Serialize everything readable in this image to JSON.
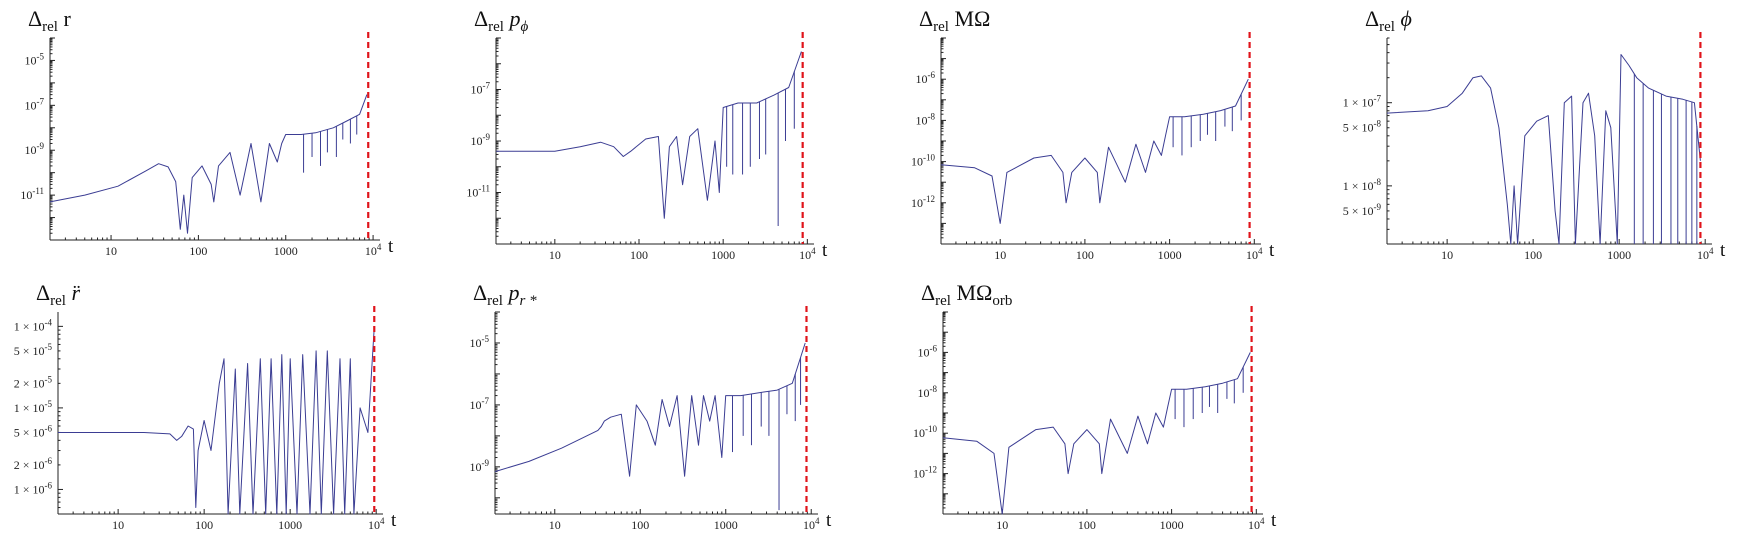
{
  "chart_data": [
    {
      "type": "line",
      "title": {
        "base": "Δ",
        "sub": "rel",
        "symbol": "r",
        "italic": false
      },
      "xlabel": "t",
      "xscale": "log",
      "yscale": "log",
      "xlim": [
        2,
        12000
      ],
      "ylim": [
        1e-13,
        0.0001
      ],
      "xticks": [
        10,
        100,
        1000,
        10000
      ],
      "xtick_labels": [
        "10",
        "100",
        "1000",
        "10^4"
      ],
      "yticks": [
        1e-11,
        1e-09,
        1e-07,
        1e-05
      ],
      "ytick_labels": [
        "10^-11",
        "10^-9",
        "10^-7",
        "10^-5"
      ],
      "series_color": "#3b3d93",
      "vline": {
        "x": 8800,
        "color": "#e0141b",
        "style": "dashed"
      },
      "curve": [
        [
          2,
          5e-12
        ],
        [
          5,
          1e-11
        ],
        [
          12,
          2.5e-11
        ],
        [
          25,
          1.2e-10
        ],
        [
          35,
          2.5e-10
        ],
        [
          45,
          1.8e-10
        ],
        [
          55,
          4e-11
        ],
        [
          62,
          3e-13
        ],
        [
          68,
          1e-11
        ],
        [
          75,
          2e-13
        ],
        [
          85,
          6e-11
        ],
        [
          110,
          2e-10
        ],
        [
          140,
          3e-11
        ],
        [
          150,
          5e-12
        ],
        [
          170,
          2e-10
        ],
        [
          230,
          8e-10
        ],
        [
          300,
          1e-11
        ],
        [
          400,
          2e-09
        ],
        [
          520,
          5e-12
        ],
        [
          650,
          2e-09
        ],
        [
          800,
          3e-10
        ],
        [
          900,
          2e-09
        ],
        [
          1000,
          5e-09
        ],
        [
          1500,
          5e-09
        ],
        [
          2200,
          6e-09
        ],
        [
          3500,
          1e-08
        ],
        [
          5000,
          2e-08
        ],
        [
          7000,
          4e-08
        ],
        [
          8500,
          3e-07
        ]
      ],
      "spikes": [
        [
          1600,
          1e-10
        ],
        [
          2000,
          5e-10
        ],
        [
          2500,
          2e-10
        ],
        [
          3000,
          8e-10
        ],
        [
          3800,
          5e-10
        ],
        [
          4500,
          3e-09
        ],
        [
          5500,
          2e-09
        ],
        [
          6500,
          5e-09
        ]
      ]
    },
    {
      "type": "line",
      "title": {
        "base": "Δ",
        "sub": "rel",
        "symbol": "p",
        "symsub": "ϕ",
        "italic": true
      },
      "xlabel": "t",
      "xscale": "log",
      "yscale": "log",
      "xlim": [
        2,
        12000
      ],
      "ylim": [
        1e-13,
        1e-05
      ],
      "xticks": [
        10,
        100,
        1000,
        10000
      ],
      "xtick_labels": [
        "10",
        "100",
        "1000",
        "10^4"
      ],
      "yticks": [
        1e-11,
        1e-09,
        1e-07
      ],
      "ytick_labels": [
        "10^-11",
        "10^-9",
        "10^-7"
      ],
      "series_color": "#3b3d93",
      "vline": {
        "x": 8800,
        "color": "#e0141b",
        "style": "dashed"
      },
      "curve": [
        [
          2,
          4e-10
        ],
        [
          10,
          4e-10
        ],
        [
          20,
          6e-10
        ],
        [
          35,
          9e-10
        ],
        [
          50,
          6e-10
        ],
        [
          65,
          2.5e-10
        ],
        [
          80,
          4e-10
        ],
        [
          120,
          1.2e-09
        ],
        [
          170,
          1.5e-09
        ],
        [
          200,
          1e-12
        ],
        [
          230,
          6e-10
        ],
        [
          280,
          1.5e-09
        ],
        [
          330,
          2e-11
        ],
        [
          400,
          1.5e-09
        ],
        [
          500,
          3e-09
        ],
        [
          650,
          5e-12
        ],
        [
          800,
          1e-09
        ],
        [
          900,
          1e-11
        ],
        [
          1000,
          2e-08
        ],
        [
          1500,
          3e-08
        ],
        [
          2500,
          3e-08
        ],
        [
          4000,
          6e-08
        ],
        [
          6000,
          1.2e-07
        ],
        [
          8500,
          3e-06
        ]
      ],
      "spikes": [
        [
          1100,
          1e-10
        ],
        [
          1300,
          5e-11
        ],
        [
          1700,
          5e-11
        ],
        [
          2100,
          1e-10
        ],
        [
          2700,
          2e-10
        ],
        [
          3200,
          3e-10
        ],
        [
          4500,
          5e-13
        ],
        [
          5500,
          1e-09
        ],
        [
          7000,
          3e-09
        ]
      ]
    },
    {
      "type": "line",
      "title": {
        "base": "Δ",
        "sub": "rel",
        "symbol": "MΩ",
        "italic": false
      },
      "xlabel": "t",
      "xscale": "log",
      "yscale": "log",
      "xlim": [
        2,
        12000
      ],
      "ylim": [
        1e-14,
        0.0001
      ],
      "xticks": [
        10,
        100,
        1000,
        10000
      ],
      "xtick_labels": [
        "10",
        "100",
        "1000",
        "10^4"
      ],
      "yticks": [
        1e-12,
        1e-10,
        1e-08,
        1e-06
      ],
      "ytick_labels": [
        "10^-12",
        "10^-10",
        "10^-8",
        "10^-6"
      ],
      "series_color": "#3b3d93",
      "vline": {
        "x": 8800,
        "color": "#e0141b",
        "style": "dashed"
      },
      "curve": [
        [
          2,
          7e-11
        ],
        [
          5,
          5e-11
        ],
        [
          8,
          2e-11
        ],
        [
          10,
          1e-13
        ],
        [
          12,
          3e-11
        ],
        [
          25,
          1.5e-10
        ],
        [
          40,
          2e-10
        ],
        [
          55,
          3e-11
        ],
        [
          60,
          1e-12
        ],
        [
          70,
          3e-11
        ],
        [
          100,
          1.5e-10
        ],
        [
          140,
          3e-11
        ],
        [
          150,
          1e-12
        ],
        [
          190,
          5e-10
        ],
        [
          300,
          1e-11
        ],
        [
          400,
          7e-10
        ],
        [
          520,
          3e-11
        ],
        [
          650,
          1e-09
        ],
        [
          800,
          2e-10
        ],
        [
          900,
          2e-09
        ],
        [
          1000,
          1.5e-08
        ],
        [
          1500,
          1.5e-08
        ],
        [
          2500,
          2e-08
        ],
        [
          4000,
          3e-08
        ],
        [
          6000,
          5e-08
        ],
        [
          8500,
          1e-06
        ]
      ],
      "spikes": [
        [
          1100,
          5e-10
        ],
        [
          1400,
          2e-10
        ],
        [
          1800,
          5e-10
        ],
        [
          2300,
          1e-09
        ],
        [
          2800,
          2e-09
        ],
        [
          3500,
          1e-09
        ],
        [
          4500,
          5e-09
        ],
        [
          5500,
          3e-09
        ],
        [
          7000,
          1e-08
        ]
      ]
    },
    {
      "type": "line",
      "title": {
        "base": "Δ",
        "sub": "rel",
        "symbol": "ϕ",
        "italic": true
      },
      "xlabel": "t",
      "xscale": "log",
      "yscale": "log",
      "xlim": [
        2,
        12000
      ],
      "ylim": [
        2e-09,
        6e-07
      ],
      "xticks": [
        10,
        100,
        1000,
        10000
      ],
      "xtick_labels": [
        "10",
        "100",
        "1000",
        "10^4"
      ],
      "yticks": [
        5e-09,
        1e-08,
        5e-08,
        1e-07
      ],
      "ytick_labels": [
        "5 × 10^-9",
        "1 × 10^-8",
        "5 × 10^-8",
        "1 × 10^-7"
      ],
      "series_color": "#3b3d93",
      "vline": {
        "x": 8800,
        "color": "#e0141b",
        "style": "dashed"
      },
      "curve": [
        [
          2,
          7.5e-08
        ],
        [
          6,
          8e-08
        ],
        [
          10,
          9e-08
        ],
        [
          15,
          1.3e-07
        ],
        [
          20,
          2e-07
        ],
        [
          25,
          2.1e-07
        ],
        [
          32,
          1.5e-07
        ],
        [
          40,
          5e-08
        ],
        [
          50,
          6e-09
        ],
        [
          55,
          2e-09
        ],
        [
          60,
          1e-08
        ],
        [
          66,
          2e-09
        ],
        [
          80,
          4e-08
        ],
        [
          110,
          6e-08
        ],
        [
          150,
          7e-08
        ],
        [
          180,
          5e-09
        ],
        [
          200,
          2e-09
        ],
        [
          230,
          1e-07
        ],
        [
          280,
          1.2e-07
        ],
        [
          310,
          2e-09
        ],
        [
          380,
          1e-07
        ],
        [
          440,
          1.3e-07
        ],
        [
          520,
          4e-08
        ],
        [
          600,
          2e-09
        ],
        [
          700,
          8e-08
        ],
        [
          800,
          5e-08
        ],
        [
          950,
          2e-09
        ],
        [
          1050,
          3.8e-07
        ],
        [
          1300,
          2.8e-07
        ],
        [
          1600,
          2e-07
        ],
        [
          2200,
          1.5e-07
        ],
        [
          3500,
          1.2e-07
        ],
        [
          5500,
          1.1e-07
        ],
        [
          7500,
          1e-07
        ],
        [
          8800,
          2e-08
        ]
      ],
      "spikes": [
        [
          1500,
          2e-09
        ],
        [
          1900,
          2e-09
        ],
        [
          2500,
          2e-09
        ],
        [
          3100,
          2e-09
        ],
        [
          4000,
          2e-09
        ],
        [
          4800,
          2e-09
        ],
        [
          6000,
          2e-09
        ],
        [
          7000,
          2e-09
        ],
        [
          8000,
          2e-09
        ]
      ]
    },
    {
      "type": "line",
      "title": {
        "base": "Δ",
        "sub": "rel",
        "symbol": "r̈",
        "italic": true
      },
      "xlabel": "t",
      "xscale": "log",
      "yscale": "log",
      "xlim": [
        2,
        12000
      ],
      "ylim": [
        5e-07,
        0.00015
      ],
      "xticks": [
        10,
        100,
        1000,
        10000
      ],
      "xtick_labels": [
        "10",
        "100",
        "1000",
        "10^4"
      ],
      "yticks": [
        1e-06,
        2e-06,
        5e-06,
        1e-05,
        2e-05,
        5e-05,
        0.0001
      ],
      "ytick_labels": [
        "1 × 10^-6",
        "2 × 10^-6",
        "5 × 10^-6",
        "1 × 10^-5",
        "2 × 10^-5",
        "5 × 10^-5",
        "1 × 10^-4"
      ],
      "series_color": "#3b3d93",
      "vline": {
        "x": 9500,
        "color": "#e0141b",
        "style": "dashed"
      },
      "curve": [
        [
          2,
          5e-06
        ],
        [
          20,
          5e-06
        ],
        [
          40,
          4.8e-06
        ],
        [
          48,
          4e-06
        ],
        [
          55,
          4.5e-06
        ],
        [
          65,
          6e-06
        ],
        [
          75,
          5.5e-06
        ],
        [
          80,
          6e-07
        ],
        [
          85,
          3e-06
        ],
        [
          100,
          7e-06
        ],
        [
          120,
          3e-06
        ],
        [
          150,
          2e-05
        ],
        [
          170,
          4e-05
        ],
        [
          190,
          5e-07
        ],
        [
          230,
          3e-05
        ],
        [
          260,
          5e-07
        ],
        [
          320,
          3.5e-05
        ],
        [
          370,
          5e-07
        ],
        [
          450,
          4e-05
        ],
        [
          520,
          5e-07
        ],
        [
          600,
          4e-05
        ],
        [
          700,
          5e-07
        ],
        [
          800,
          4.5e-05
        ],
        [
          900,
          5e-07
        ],
        [
          1000,
          4e-05
        ],
        [
          1200,
          5e-07
        ],
        [
          1400,
          4.5e-05
        ],
        [
          1700,
          5e-07
        ],
        [
          2000,
          5e-05
        ],
        [
          2300,
          5e-07
        ],
        [
          2700,
          5e-05
        ],
        [
          3200,
          5e-07
        ],
        [
          3800,
          4e-05
        ],
        [
          4300,
          5e-07
        ],
        [
          5000,
          4e-05
        ],
        [
          5500,
          5e-07
        ],
        [
          6500,
          1e-05
        ],
        [
          8000,
          5e-06
        ],
        [
          9500,
          0.0001
        ]
      ],
      "spikes": []
    },
    {
      "type": "line",
      "title": {
        "base": "Δ",
        "sub": "rel",
        "symbol": "p",
        "symsub": "r *",
        "italic": true
      },
      "xlabel": "t",
      "xscale": "log",
      "yscale": "log",
      "xlim": [
        2,
        12000
      ],
      "ylim": [
        3e-11,
        0.0001
      ],
      "xticks": [
        10,
        100,
        1000,
        10000
      ],
      "xtick_labels": [
        "10",
        "100",
        "1000",
        "10^4"
      ],
      "yticks": [
        1e-09,
        1e-07,
        1e-05
      ],
      "ytick_labels": [
        "10^-9",
        "10^-7",
        "10^-5"
      ],
      "series_color": "#3b3d93",
      "vline": {
        "x": 8800,
        "color": "#e0141b",
        "style": "dashed"
      },
      "curve": [
        [
          2,
          7e-10
        ],
        [
          5,
          1.5e-09
        ],
        [
          12,
          4e-09
        ],
        [
          20,
          8e-09
        ],
        [
          32,
          1.5e-08
        ],
        [
          35,
          2e-08
        ],
        [
          38,
          3e-08
        ],
        [
          45,
          4e-08
        ],
        [
          60,
          5e-08
        ],
        [
          75,
          5e-10
        ],
        [
          90,
          1e-07
        ],
        [
          120,
          3e-08
        ],
        [
          150,
          5e-09
        ],
        [
          180,
          1.5e-07
        ],
        [
          220,
          2e-08
        ],
        [
          270,
          2e-07
        ],
        [
          330,
          5e-10
        ],
        [
          400,
          2e-07
        ],
        [
          480,
          5e-09
        ],
        [
          550,
          2e-07
        ],
        [
          650,
          3e-08
        ],
        [
          750,
          2e-07
        ],
        [
          900,
          2e-09
        ],
        [
          1000,
          2e-07
        ],
        [
          1500,
          2e-07
        ],
        [
          2500,
          2.5e-07
        ],
        [
          4000,
          3e-07
        ],
        [
          6000,
          5e-07
        ],
        [
          8500,
          1e-05
        ]
      ],
      "spikes": [
        [
          1200,
          3e-09
        ],
        [
          1600,
          1e-08
        ],
        [
          2000,
          5e-09
        ],
        [
          2600,
          2e-08
        ],
        [
          3200,
          1e-08
        ],
        [
          4200,
          4e-11
        ],
        [
          5200,
          5e-08
        ],
        [
          6500,
          3e-08
        ],
        [
          7500,
          1e-07
        ]
      ]
    },
    {
      "type": "line",
      "title": {
        "base": "Δ",
        "sub": "rel",
        "symbol": "MΩ",
        "symsub": "orb",
        "italic": false
      },
      "xlabel": "t",
      "xscale": "log",
      "yscale": "log",
      "xlim": [
        2,
        12000
      ],
      "ylim": [
        1e-14,
        0.0001
      ],
      "xticks": [
        10,
        100,
        1000,
        10000
      ],
      "xtick_labels": [
        "10",
        "100",
        "1000",
        "10^4"
      ],
      "yticks": [
        1e-12,
        1e-10,
        1e-08,
        1e-06
      ],
      "ytick_labels": [
        "10^-12",
        "10^-10",
        "10^-8",
        "10^-6"
      ],
      "series_color": "#3b3d93",
      "vline": {
        "x": 8800,
        "color": "#e0141b",
        "style": "dashed"
      },
      "curve": [
        [
          2,
          6e-11
        ],
        [
          5,
          4e-11
        ],
        [
          8,
          1e-11
        ],
        [
          10,
          1e-14
        ],
        [
          12,
          2e-11
        ],
        [
          25,
          1.5e-10
        ],
        [
          40,
          2e-10
        ],
        [
          55,
          3e-11
        ],
        [
          60,
          1e-12
        ],
        [
          70,
          3e-11
        ],
        [
          100,
          1.5e-10
        ],
        [
          140,
          3e-11
        ],
        [
          150,
          1e-12
        ],
        [
          190,
          5e-10
        ],
        [
          300,
          1e-11
        ],
        [
          400,
          7e-10
        ],
        [
          520,
          3e-11
        ],
        [
          650,
          1e-09
        ],
        [
          800,
          2e-10
        ],
        [
          900,
          2e-09
        ],
        [
          1000,
          1.5e-08
        ],
        [
          1500,
          1.5e-08
        ],
        [
          2500,
          2e-08
        ],
        [
          4000,
          3e-08
        ],
        [
          6000,
          5e-08
        ],
        [
          8500,
          1e-06
        ]
      ],
      "spikes": [
        [
          1100,
          5e-10
        ],
        [
          1400,
          2e-10
        ],
        [
          1800,
          5e-10
        ],
        [
          2300,
          1e-09
        ],
        [
          2800,
          2e-09
        ],
        [
          3500,
          1e-09
        ],
        [
          4500,
          5e-09
        ],
        [
          5500,
          3e-09
        ],
        [
          7000,
          1e-08
        ]
      ]
    }
  ]
}
